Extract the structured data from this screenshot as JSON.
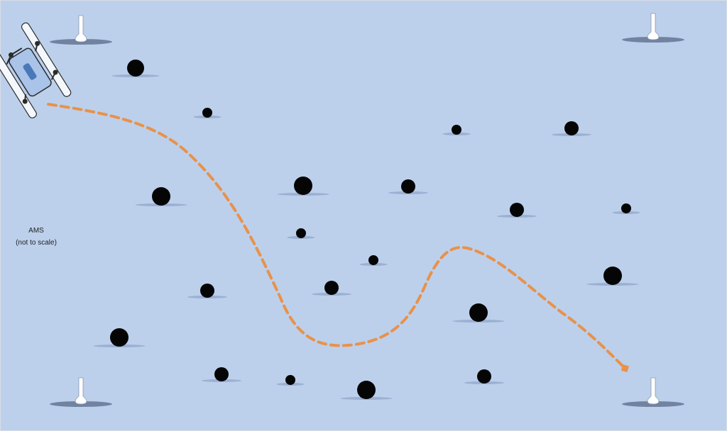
{
  "colors": {
    "background": "#bcd0ec",
    "frame_border": "#d8dde6",
    "nodule": "#050505",
    "shadow": "#7f95bd",
    "marker_shadow": "#5f6f8f",
    "marker": "#ffffff",
    "path": "#e8924a",
    "robot_frame": "#2b2b2b",
    "robot_body": "#a9c3e9",
    "robot_panel": "#4a78b8"
  },
  "icons": {
    "robot": "ams-vehicle-icon",
    "marker": "seabed-marker-icon",
    "nodule": "nodule-icon",
    "path_end": "arrow-head-icon"
  },
  "label": {
    "line1": "AMS",
    "line2": "(not to scale)"
  }
}
